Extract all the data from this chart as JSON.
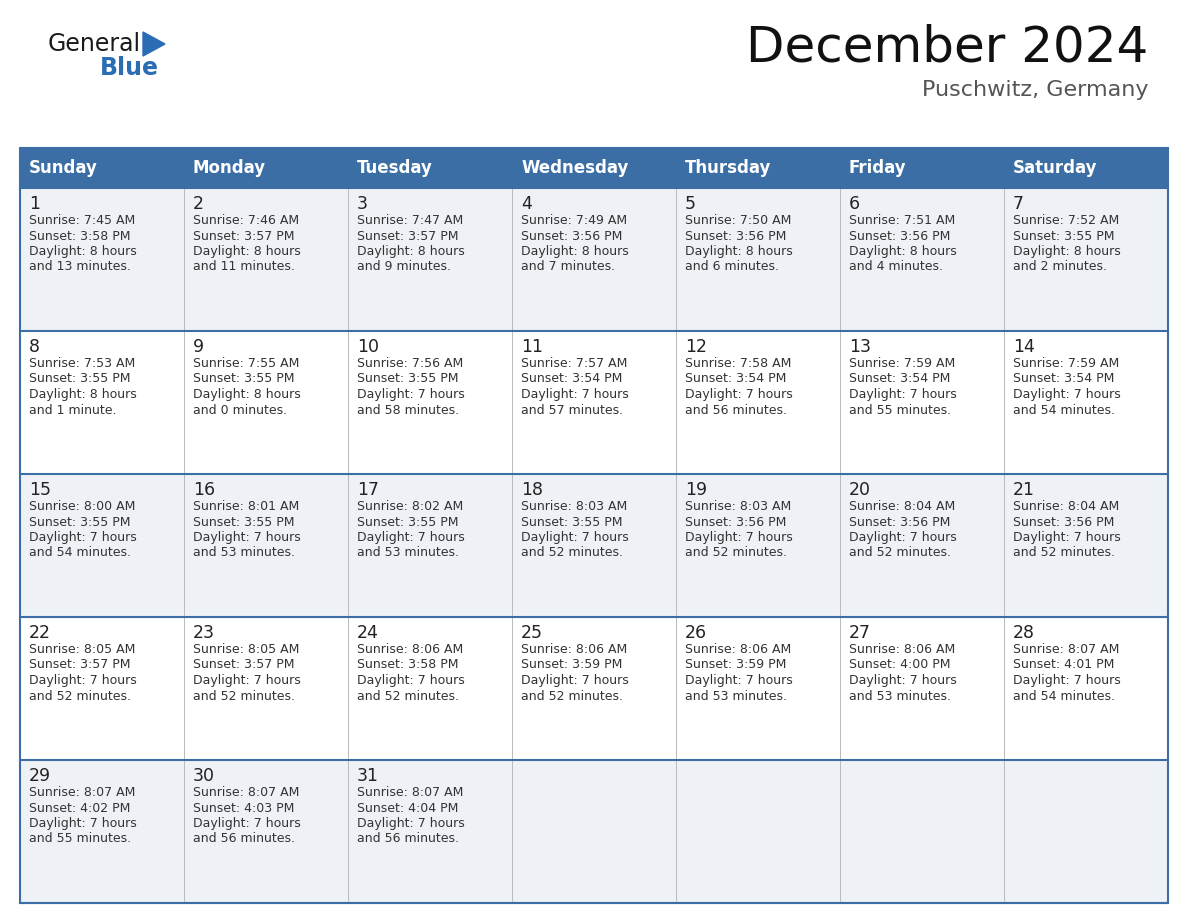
{
  "title": "December 2024",
  "subtitle": "Puschwitz, Germany",
  "days_of_week": [
    "Sunday",
    "Monday",
    "Tuesday",
    "Wednesday",
    "Thursday",
    "Friday",
    "Saturday"
  ],
  "header_bg": "#3a6ea5",
  "header_text": "#ffffff",
  "odd_row_bg": "#eef2f7",
  "even_row_bg": "#ffffff",
  "border_color": "#3a6ea5",
  "cell_text_color": "#333333",
  "day_num_color": "#222222",
  "logo_general_color": "#1a1a1a",
  "logo_blue_color": "#2a6db5",
  "weeks": [
    [
      {
        "day": 1,
        "sunrise": "7:45 AM",
        "sunset": "3:58 PM",
        "daylight_line1": "8 hours",
        "daylight_line2": "and 13 minutes."
      },
      {
        "day": 2,
        "sunrise": "7:46 AM",
        "sunset": "3:57 PM",
        "daylight_line1": "8 hours",
        "daylight_line2": "and 11 minutes."
      },
      {
        "day": 3,
        "sunrise": "7:47 AM",
        "sunset": "3:57 PM",
        "daylight_line1": "8 hours",
        "daylight_line2": "and 9 minutes."
      },
      {
        "day": 4,
        "sunrise": "7:49 AM",
        "sunset": "3:56 PM",
        "daylight_line1": "8 hours",
        "daylight_line2": "and 7 minutes."
      },
      {
        "day": 5,
        "sunrise": "7:50 AM",
        "sunset": "3:56 PM",
        "daylight_line1": "8 hours",
        "daylight_line2": "and 6 minutes."
      },
      {
        "day": 6,
        "sunrise": "7:51 AM",
        "sunset": "3:56 PM",
        "daylight_line1": "8 hours",
        "daylight_line2": "and 4 minutes."
      },
      {
        "day": 7,
        "sunrise": "7:52 AM",
        "sunset": "3:55 PM",
        "daylight_line1": "8 hours",
        "daylight_line2": "and 2 minutes."
      }
    ],
    [
      {
        "day": 8,
        "sunrise": "7:53 AM",
        "sunset": "3:55 PM",
        "daylight_line1": "8 hours",
        "daylight_line2": "and 1 minute."
      },
      {
        "day": 9,
        "sunrise": "7:55 AM",
        "sunset": "3:55 PM",
        "daylight_line1": "8 hours",
        "daylight_line2": "and 0 minutes."
      },
      {
        "day": 10,
        "sunrise": "7:56 AM",
        "sunset": "3:55 PM",
        "daylight_line1": "7 hours",
        "daylight_line2": "and 58 minutes."
      },
      {
        "day": 11,
        "sunrise": "7:57 AM",
        "sunset": "3:54 PM",
        "daylight_line1": "7 hours",
        "daylight_line2": "and 57 minutes."
      },
      {
        "day": 12,
        "sunrise": "7:58 AM",
        "sunset": "3:54 PM",
        "daylight_line1": "7 hours",
        "daylight_line2": "and 56 minutes."
      },
      {
        "day": 13,
        "sunrise": "7:59 AM",
        "sunset": "3:54 PM",
        "daylight_line1": "7 hours",
        "daylight_line2": "and 55 minutes."
      },
      {
        "day": 14,
        "sunrise": "7:59 AM",
        "sunset": "3:54 PM",
        "daylight_line1": "7 hours",
        "daylight_line2": "and 54 minutes."
      }
    ],
    [
      {
        "day": 15,
        "sunrise": "8:00 AM",
        "sunset": "3:55 PM",
        "daylight_line1": "7 hours",
        "daylight_line2": "and 54 minutes."
      },
      {
        "day": 16,
        "sunrise": "8:01 AM",
        "sunset": "3:55 PM",
        "daylight_line1": "7 hours",
        "daylight_line2": "and 53 minutes."
      },
      {
        "day": 17,
        "sunrise": "8:02 AM",
        "sunset": "3:55 PM",
        "daylight_line1": "7 hours",
        "daylight_line2": "and 53 minutes."
      },
      {
        "day": 18,
        "sunrise": "8:03 AM",
        "sunset": "3:55 PM",
        "daylight_line1": "7 hours",
        "daylight_line2": "and 52 minutes."
      },
      {
        "day": 19,
        "sunrise": "8:03 AM",
        "sunset": "3:56 PM",
        "daylight_line1": "7 hours",
        "daylight_line2": "and 52 minutes."
      },
      {
        "day": 20,
        "sunrise": "8:04 AM",
        "sunset": "3:56 PM",
        "daylight_line1": "7 hours",
        "daylight_line2": "and 52 minutes."
      },
      {
        "day": 21,
        "sunrise": "8:04 AM",
        "sunset": "3:56 PM",
        "daylight_line1": "7 hours",
        "daylight_line2": "and 52 minutes."
      }
    ],
    [
      {
        "day": 22,
        "sunrise": "8:05 AM",
        "sunset": "3:57 PM",
        "daylight_line1": "7 hours",
        "daylight_line2": "and 52 minutes."
      },
      {
        "day": 23,
        "sunrise": "8:05 AM",
        "sunset": "3:57 PM",
        "daylight_line1": "7 hours",
        "daylight_line2": "and 52 minutes."
      },
      {
        "day": 24,
        "sunrise": "8:06 AM",
        "sunset": "3:58 PM",
        "daylight_line1": "7 hours",
        "daylight_line2": "and 52 minutes."
      },
      {
        "day": 25,
        "sunrise": "8:06 AM",
        "sunset": "3:59 PM",
        "daylight_line1": "7 hours",
        "daylight_line2": "and 52 minutes."
      },
      {
        "day": 26,
        "sunrise": "8:06 AM",
        "sunset": "3:59 PM",
        "daylight_line1": "7 hours",
        "daylight_line2": "and 53 minutes."
      },
      {
        "day": 27,
        "sunrise": "8:06 AM",
        "sunset": "4:00 PM",
        "daylight_line1": "7 hours",
        "daylight_line2": "and 53 minutes."
      },
      {
        "day": 28,
        "sunrise": "8:07 AM",
        "sunset": "4:01 PM",
        "daylight_line1": "7 hours",
        "daylight_line2": "and 54 minutes."
      }
    ],
    [
      {
        "day": 29,
        "sunrise": "8:07 AM",
        "sunset": "4:02 PM",
        "daylight_line1": "7 hours",
        "daylight_line2": "and 55 minutes."
      },
      {
        "day": 30,
        "sunrise": "8:07 AM",
        "sunset": "4:03 PM",
        "daylight_line1": "7 hours",
        "daylight_line2": "and 56 minutes."
      },
      {
        "day": 31,
        "sunrise": "8:07 AM",
        "sunset": "4:04 PM",
        "daylight_line1": "7 hours",
        "daylight_line2": "and 56 minutes."
      },
      null,
      null,
      null,
      null
    ]
  ]
}
